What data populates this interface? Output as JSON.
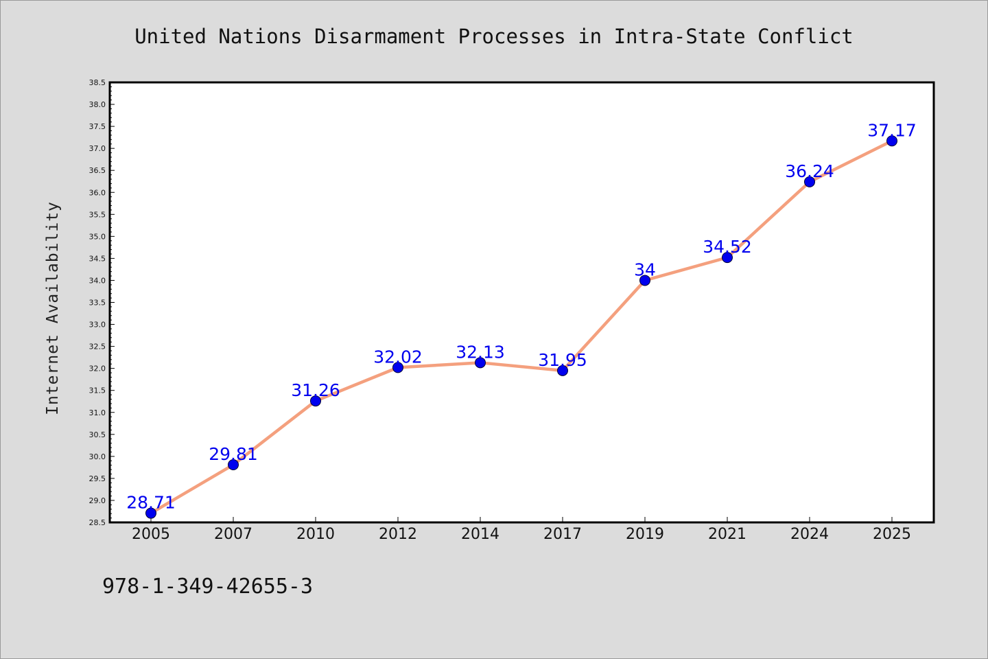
{
  "chart_data": {
    "type": "line",
    "title": "United Nations Disarmament Processes in Intra-State Conflict",
    "xlabel": "",
    "ylabel": "Internet Availability",
    "categories": [
      "2005",
      "2007",
      "2010",
      "2012",
      "2014",
      "2017",
      "2019",
      "2021",
      "2024",
      "2025"
    ],
    "series": [
      {
        "values": [
          28.71,
          29.81,
          31.26,
          32.02,
          32.13,
          31.95,
          34,
          34.52,
          36.24,
          37.17
        ],
        "labels": [
          "28.71",
          "29.81",
          "31.26",
          "32.02",
          "32.13",
          "31.95",
          "34",
          "34.52",
          "36.24",
          "37.17"
        ],
        "line_color": "#f4a07e",
        "marker_color": "#0000ee"
      }
    ],
    "ylim": [
      28.5,
      38.5
    ],
    "ytick_step": 0.5,
    "grid": false,
    "legend": "none"
  },
  "footer": {
    "isbn": "978-1-349-42655-3"
  }
}
